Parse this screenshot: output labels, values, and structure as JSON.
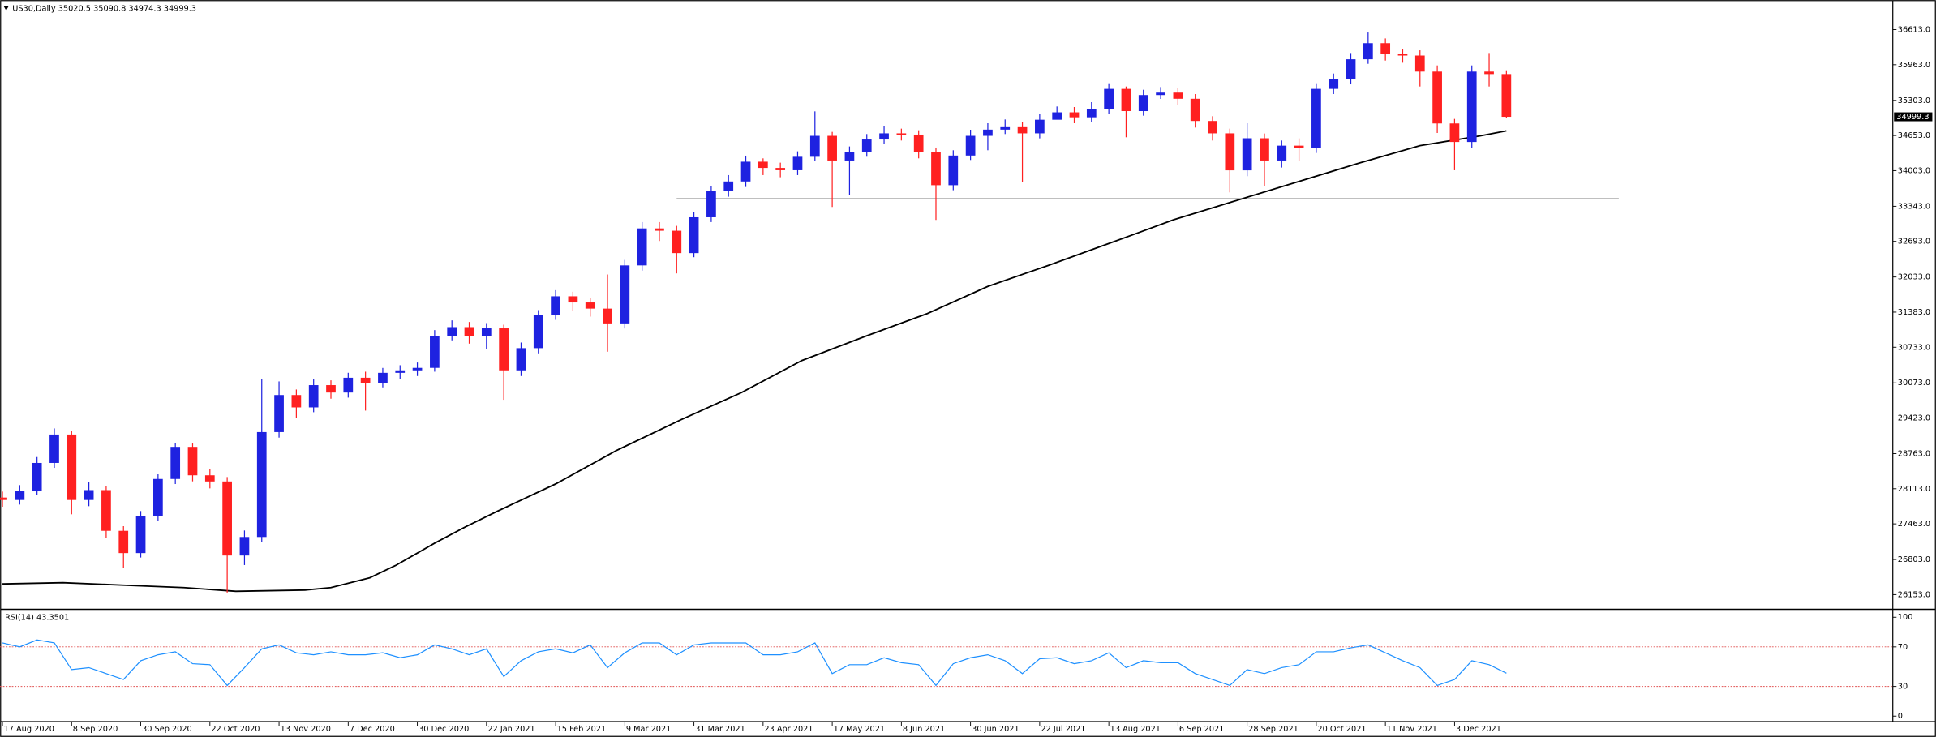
{
  "chart_data": [
    {
      "type": "candlestick",
      "title": "US30,Daily  35020.5 35090.8 34974.3 34999.3",
      "up_color": "#1e22e0",
      "down_color": "#ff2020",
      "x": [
        0,
        4,
        8,
        12,
        16,
        20,
        24,
        28,
        32,
        36,
        40,
        44,
        48,
        52,
        56,
        60,
        64,
        68,
        72,
        76,
        80,
        84,
        88,
        92,
        96,
        100,
        104,
        108,
        112,
        116,
        120,
        124,
        128,
        132,
        136,
        140,
        144,
        148,
        152,
        156,
        160,
        164,
        168,
        172,
        176,
        180,
        184,
        188,
        192,
        196,
        200,
        204,
        208,
        212,
        216,
        220,
        224,
        228,
        232,
        236,
        240,
        244,
        248,
        252,
        256,
        260,
        264,
        268,
        272,
        276,
        280,
        284,
        288,
        292,
        296,
        300,
        304,
        308,
        312,
        316,
        320,
        324,
        328,
        332,
        336,
        340,
        344,
        348
      ],
      "open": [
        27950,
        27905,
        28065,
        28591,
        29117,
        27905,
        28088,
        27334,
        26922,
        27608,
        28294,
        28888,
        28362,
        28248,
        26877,
        27220,
        29162,
        29848,
        29619,
        30031,
        29894,
        30168,
        30076,
        30259,
        30305,
        30351,
        30945,
        31105,
        30945,
        31082,
        30305,
        30716,
        31333,
        31676,
        31562,
        31448,
        31174,
        32248,
        32933,
        32890,
        32476,
        33139,
        33619,
        33802,
        34168,
        34053,
        34010,
        34259,
        34647,
        34190,
        34350,
        34579,
        34693,
        34670,
        34350,
        33733,
        34282,
        34647,
        34762,
        34807,
        34693,
        34945,
        35082,
        34990,
        35150,
        35516,
        35105,
        35402,
        35447,
        35333,
        34922,
        34693,
        34008,
        34602,
        34190,
        34465,
        34420,
        35516,
        35699,
        36064,
        36362,
        36156,
        36133,
        35836,
        34876,
        34533,
        35836,
        35790
      ],
      "high": [
        28060,
        28180,
        28700,
        29230,
        29180,
        28230,
        28160,
        27420,
        27700,
        28380,
        28960,
        28950,
        28480,
        28330,
        27340,
        30140,
        30100,
        29950,
        30150,
        30120,
        30260,
        30280,
        30350,
        30400,
        30450,
        31050,
        31230,
        31200,
        31180,
        31150,
        30820,
        31420,
        31790,
        31760,
        31650,
        32080,
        32350,
        33050,
        33050,
        32980,
        33240,
        33720,
        33920,
        34280,
        34230,
        34150,
        34360,
        35100,
        34720,
        34450,
        34680,
        34820,
        34780,
        34750,
        34430,
        34380,
        34760,
        34880,
        34950,
        34900,
        35060,
        35190,
        35180,
        35270,
        35620,
        35560,
        35500,
        35550,
        35540,
        35420,
        35010,
        34780,
        34880,
        34690,
        34560,
        34600,
        35620,
        35800,
        36180,
        36560,
        36450,
        36250,
        36230,
        35950,
        34960,
        35950,
        36180,
        35860
      ],
      "low": [
        27780,
        27820,
        27990,
        28500,
        27640,
        27790,
        27200,
        26640,
        26840,
        27520,
        28200,
        28250,
        28120,
        26190,
        26700,
        27120,
        29060,
        29420,
        29530,
        29780,
        29800,
        29560,
        29990,
        30150,
        30200,
        30280,
        30860,
        30800,
        30700,
        29760,
        30200,
        30620,
        31240,
        31400,
        31300,
        30650,
        31080,
        32150,
        32700,
        32100,
        32400,
        33050,
        33520,
        33700,
        33920,
        33880,
        33920,
        34180,
        33330,
        33550,
        34260,
        34500,
        34560,
        34230,
        33090,
        33640,
        34200,
        34380,
        34680,
        33790,
        34600,
        34980,
        34880,
        34900,
        35060,
        34620,
        35020,
        35330,
        35220,
        34800,
        34560,
        33600,
        33900,
        33720,
        34060,
        34180,
        34330,
        35420,
        35600,
        35980,
        36040,
        36000,
        35560,
        34700,
        34010,
        34420,
        35560,
        34974.3
      ],
      "close": [
        27905,
        28065,
        28591,
        29117,
        27905,
        28088,
        27334,
        26922,
        27608,
        28294,
        28888,
        28362,
        28248,
        26877,
        27220,
        29162,
        29848,
        29619,
        30031,
        29894,
        30168,
        30076,
        30259,
        30305,
        30351,
        30945,
        31105,
        30945,
        31082,
        30305,
        30716,
        31333,
        31676,
        31562,
        31448,
        31174,
        32248,
        32933,
        32890,
        32476,
        33139,
        33619,
        33802,
        34168,
        34053,
        34010,
        34259,
        34647,
        34190,
        34350,
        34579,
        34693,
        34670,
        34350,
        33733,
        34282,
        34647,
        34762,
        34807,
        34693,
        34945,
        35082,
        34990,
        35150,
        35516,
        35105,
        35402,
        35447,
        35333,
        34922,
        34693,
        34008,
        34602,
        34190,
        34465,
        34420,
        35516,
        35699,
        36064,
        36362,
        36156,
        36133,
        35836,
        34876,
        34533,
        35836,
        35790,
        34999.3
      ],
      "ma": {
        "color": "#000000",
        "x": [
          0,
          14,
          28,
          42,
          54,
          70,
          76,
          85,
          91,
          100,
          107,
          114,
          128,
          142,
          157,
          171,
          185,
          200,
          214,
          228,
          242,
          257,
          271,
          285,
          300,
          314,
          328,
          342,
          348
        ],
        "values": [
          26351,
          26374,
          26328,
          26283,
          26214,
          26237,
          26283,
          26465,
          26694,
          27105,
          27402,
          27677,
          28202,
          28819,
          29391,
          29894,
          30488,
          30945,
          31356,
          31859,
          32248,
          32682,
          33093,
          33436,
          33802,
          34145,
          34465,
          34647,
          34739
        ]
      },
      "hline": {
        "value": 33482,
        "color": "#555555",
        "x": [
          156,
          374
        ]
      },
      "last_price": 34999.3,
      "xlim": [
        -0.57,
        437.4
      ],
      "ylim": [
        25894,
        37070
      ],
      "yticks": [
        {
          "value": 26153,
          "label": "26153.0"
        },
        {
          "value": 26803,
          "label": "26803.0"
        },
        {
          "value": 27463,
          "label": "27463.0"
        },
        {
          "value": 28113,
          "label": "28113.0"
        },
        {
          "value": 28763,
          "label": "28763.0"
        },
        {
          "value": 29423,
          "label": "29423.0"
        },
        {
          "value": 30073,
          "label": "30073.0"
        },
        {
          "value": 30733,
          "label": "30733.0"
        },
        {
          "value": 31383,
          "label": "31383.0"
        },
        {
          "value": 32033,
          "label": "32033.0"
        },
        {
          "value": 32693,
          "label": "32693.0"
        },
        {
          "value": 33343,
          "label": "33343.0"
        },
        {
          "value": 34003,
          "label": "34003.0"
        },
        {
          "value": 34653,
          "label": "34653.0"
        },
        {
          "value": 35303,
          "label": "35303.0"
        },
        {
          "value": 35963,
          "label": "35963.0"
        },
        {
          "value": 36613,
          "label": "36613.0"
        }
      ],
      "xticks": [
        {
          "value": 0,
          "label": "17 Aug 2020"
        },
        {
          "value": 16,
          "label": "8 Sep 2020"
        },
        {
          "value": 32,
          "label": "30 Sep 2020"
        },
        {
          "value": 48,
          "label": "22 Oct 2020"
        },
        {
          "value": 64,
          "label": "13 Nov 2020"
        },
        {
          "value": 80,
          "label": "7 Dec 2020"
        },
        {
          "value": 96,
          "label": "30 Dec 2020"
        },
        {
          "value": 112,
          "label": "22 Jan 2021"
        },
        {
          "value": 128,
          "label": "15 Feb 2021"
        },
        {
          "value": 144,
          "label": "9 Mar 2021"
        },
        {
          "value": 160,
          "label": "31 Mar 2021"
        },
        {
          "value": 176,
          "label": "23 Apr 2021"
        },
        {
          "value": 192,
          "label": "17 May 2021"
        },
        {
          "value": 208,
          "label": "8 Jun 2021"
        },
        {
          "value": 224,
          "label": "30 Jun 2021"
        },
        {
          "value": 240,
          "label": "22 Jul 2021"
        },
        {
          "value": 256,
          "label": "13 Aug 2021"
        },
        {
          "value": 272,
          "label": "6 Sep 2021"
        },
        {
          "value": 288,
          "label": "28 Sep 2021"
        },
        {
          "value": 304,
          "label": "20 Oct 2021"
        },
        {
          "value": 320,
          "label": "11 Nov 2021"
        },
        {
          "value": 336,
          "label": "3 Dec 2021"
        }
      ]
    },
    {
      "type": "line",
      "title": "RSI(14) 43.3501",
      "color": "#1e90ff",
      "values": [
        74,
        70,
        77,
        74,
        47,
        49,
        43,
        37,
        56,
        62,
        65,
        53,
        52,
        31,
        49,
        68,
        72,
        64,
        62,
        65,
        62,
        62,
        64,
        59,
        62,
        72,
        68,
        62,
        68,
        40,
        56,
        65,
        68,
        64,
        72,
        49,
        64,
        74,
        74,
        62,
        72,
        74,
        74,
        74,
        62,
        62,
        65,
        74,
        43,
        52,
        52,
        59,
        54,
        52,
        31,
        53,
        59,
        62,
        56,
        43,
        58,
        59,
        53,
        56,
        64,
        49,
        56,
        54,
        54,
        43,
        37,
        31,
        47,
        43,
        49,
        52,
        65,
        65,
        69,
        72,
        64,
        56,
        49,
        31,
        37,
        56,
        52,
        43.3501
      ],
      "levels": [
        30,
        70
      ],
      "level_color": "#e05050",
      "ylim": [
        -4.9,
        106.2
      ],
      "yticks": [
        0,
        30,
        70,
        100
      ]
    }
  ]
}
